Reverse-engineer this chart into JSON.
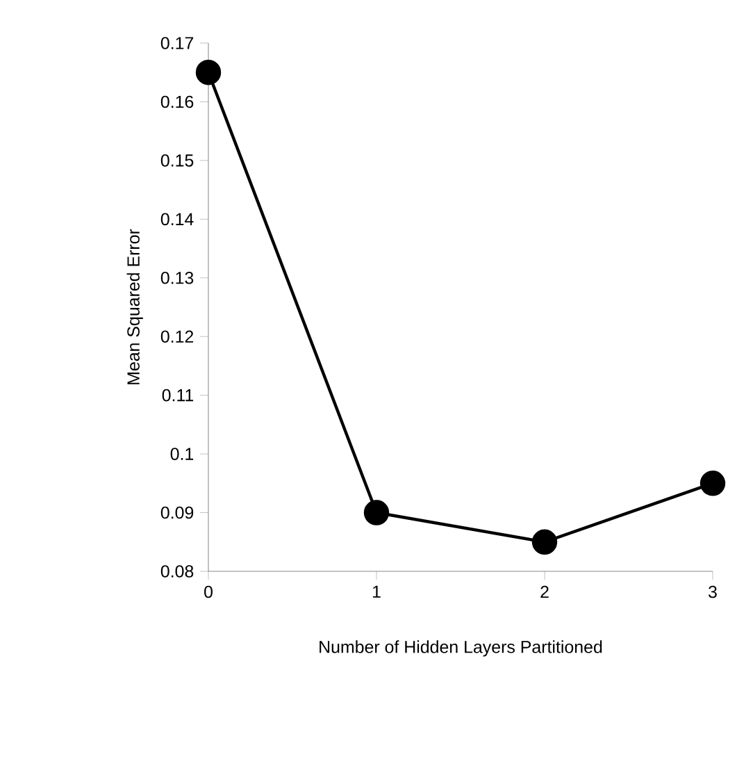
{
  "chart_data": {
    "type": "line",
    "xlabel": "Number of Hidden Layers Partitioned",
    "ylabel": "Mean Squared Error",
    "x": [
      0,
      1,
      2,
      3
    ],
    "series": [
      {
        "color": "#000000",
        "values": [
          0.165,
          0.09,
          0.085,
          0.095
        ]
      }
    ],
    "xlim": [
      0,
      3
    ],
    "xticks": [
      0,
      1,
      2,
      3
    ],
    "ylim": [
      0.08,
      0.17
    ],
    "yticks": [
      0.08,
      0.09,
      0.1,
      0.11,
      0.12,
      0.13,
      0.14,
      0.15,
      0.16,
      0.17
    ],
    "marker": "circle",
    "line_style": "solid"
  }
}
